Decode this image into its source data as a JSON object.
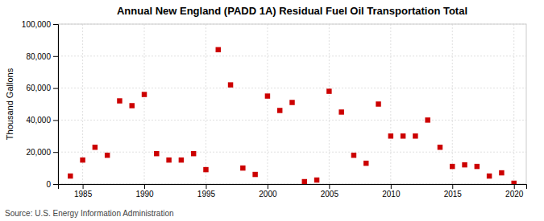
{
  "chart_data": {
    "type": "scatter",
    "title": "Annual New England (PADD 1A) Residual Fuel Oil Transportation Total",
    "ylabel": "Thousand Gallons",
    "source": "Source: U.S. Energy Information Administration",
    "x": [
      1984,
      1985,
      1986,
      1987,
      1988,
      1989,
      1990,
      1991,
      1992,
      1993,
      1994,
      1995,
      1996,
      1997,
      1998,
      1999,
      2000,
      2001,
      2002,
      2003,
      2004,
      2005,
      2006,
      2007,
      2008,
      2009,
      2010,
      2011,
      2012,
      2013,
      2014,
      2015,
      2016,
      2017,
      2018,
      2019,
      2020
    ],
    "values": [
      5000,
      15000,
      23000,
      18000,
      52000,
      49000,
      56000,
      19000,
      15000,
      15000,
      19000,
      9000,
      84000,
      62000,
      10000,
      6000,
      55000,
      46000,
      51000,
      1500,
      2500,
      58000,
      45000,
      18000,
      13000,
      50000,
      30000,
      30000,
      30000,
      40000,
      23000,
      11000,
      12000,
      11000,
      5000,
      7000,
      500
    ],
    "color": "#cc0000",
    "marker": "square",
    "xlim": [
      1983,
      2021
    ],
    "ylim": [
      0,
      100000
    ],
    "xticks": [
      1985,
      1990,
      1995,
      2000,
      2005,
      2010,
      2015,
      2020
    ],
    "yticks": [
      0,
      {
        "value": 20000,
        "label": "20,000"
      },
      {
        "value": 40000,
        "label": "40,000"
      },
      {
        "value": 60000,
        "label": "60,000"
      },
      {
        "value": 80000,
        "label": "80,000"
      },
      {
        "value": 100000,
        "label": "100,000"
      }
    ],
    "grid": true
  }
}
